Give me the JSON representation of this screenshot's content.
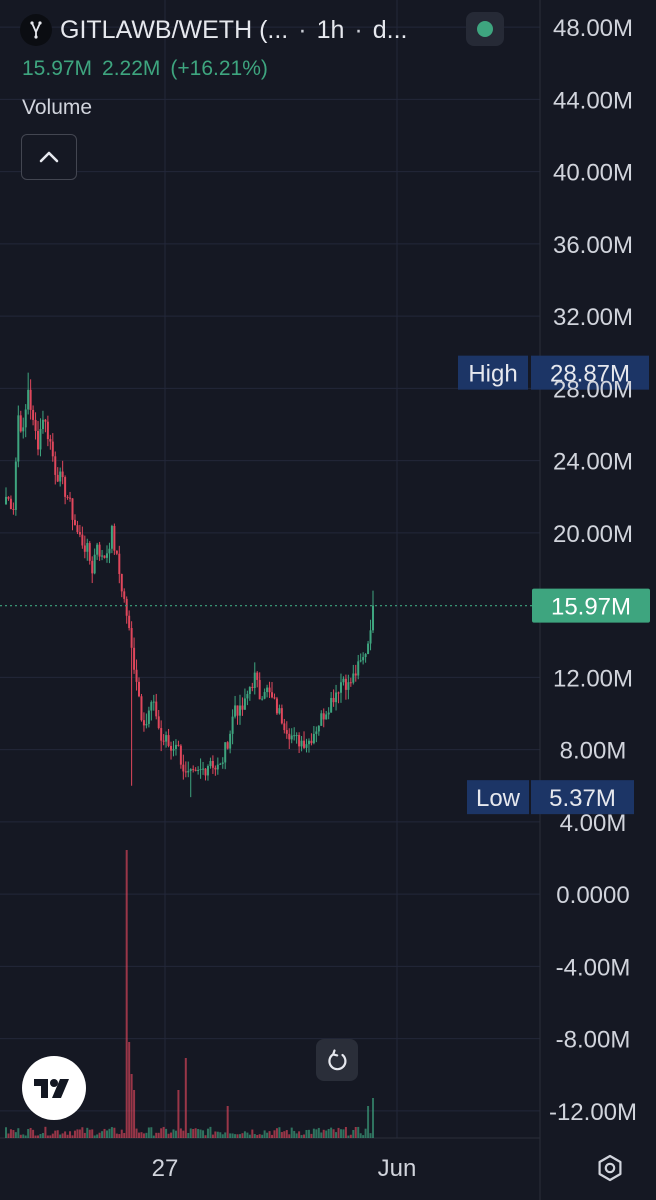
{
  "header": {
    "pair": "GITLAWB/WETH (...",
    "separator": "·",
    "interval": "1h",
    "trailing": "d..."
  },
  "values_line": {
    "close": "15.97M",
    "change": "2.22M",
    "change_pct": "(+16.21%)"
  },
  "indicator": {
    "label": "Volume"
  },
  "colors": {
    "background": "#151823",
    "up": "#3ea57f",
    "down": "#e0475c",
    "grid": "#23273a",
    "text": "#d1d4dc",
    "badge": "#1c3566",
    "price_tag": "#3ea57f"
  },
  "icons": {
    "logo": "gitlawb-logo-icon",
    "status": "status-dot-icon",
    "collapse": "chevron-up-icon",
    "reset": "reset-icon",
    "brand": "tradingview-logo-icon",
    "settings": "gear-icon"
  },
  "chart_data": {
    "type": "candlestick",
    "y_ticks": [
      "48.00M",
      "44.00M",
      "40.00M",
      "36.00M",
      "32.00M",
      "28.00M",
      "24.00M",
      "20.00M",
      "12.00M",
      "8.00M",
      "4.00M",
      "0.0000",
      "-4.00M",
      "-8.00M",
      "-12.00M"
    ],
    "y_tick_values": [
      48,
      44,
      40,
      36,
      32,
      28,
      24,
      20,
      12,
      8,
      4,
      0,
      -4,
      -8,
      -12
    ],
    "ylim": [
      -13.5,
      49.5
    ],
    "x_ticks": [
      "27",
      "Jun"
    ],
    "high": {
      "label": "High",
      "value": "28.87M",
      "y": 28.87
    },
    "low": {
      "label": "Low",
      "value": "5.37M",
      "y": 5.37
    },
    "last_price": {
      "value": "15.97M",
      "y": 15.97
    },
    "close_anchors": [
      [
        0,
        22.0
      ],
      [
        3,
        21.5
      ],
      [
        5,
        26.5
      ],
      [
        7,
        25.5
      ],
      [
        9,
        28.0
      ],
      [
        11,
        26.0
      ],
      [
        13,
        25.0
      ],
      [
        15,
        26.5
      ],
      [
        18,
        25.0
      ],
      [
        20,
        23.5
      ],
      [
        22,
        23.0
      ],
      [
        25,
        22.0
      ],
      [
        27,
        21.0
      ],
      [
        29,
        20.0
      ],
      [
        31,
        19.5
      ],
      [
        33,
        19.0
      ],
      [
        35,
        18.0
      ],
      [
        37,
        19.5
      ],
      [
        39,
        18.5
      ],
      [
        41,
        19.0
      ],
      [
        43,
        20.0
      ],
      [
        45,
        18.5
      ],
      [
        47,
        17.0
      ],
      [
        49,
        15.5
      ],
      [
        51,
        13.5
      ],
      [
        53,
        12.0
      ],
      [
        55,
        10.0
      ],
      [
        57,
        9.5
      ],
      [
        59,
        10.5
      ],
      [
        61,
        10.0
      ],
      [
        63,
        8.5
      ],
      [
        65,
        8.5
      ],
      [
        67,
        8.0
      ],
      [
        69,
        8.5
      ],
      [
        71,
        7.5
      ],
      [
        73,
        6.5
      ],
      [
        75,
        6.5
      ],
      [
        77,
        6.5
      ],
      [
        79,
        6.8
      ],
      [
        81,
        7.0
      ],
      [
        83,
        7.5
      ],
      [
        85,
        7.0
      ],
      [
        87,
        7.0
      ],
      [
        89,
        8.0
      ],
      [
        91,
        9.0
      ],
      [
        93,
        10.5
      ],
      [
        95,
        10.0
      ],
      [
        97,
        10.5
      ],
      [
        99,
        11.5
      ],
      [
        101,
        12.0
      ],
      [
        103,
        11.0
      ],
      [
        105,
        11.5
      ],
      [
        107,
        11.0
      ],
      [
        109,
        10.5
      ],
      [
        111,
        10.0
      ],
      [
        113,
        9.5
      ],
      [
        115,
        9.0
      ],
      [
        117,
        8.5
      ],
      [
        119,
        8.5
      ],
      [
        121,
        8.5
      ],
      [
        123,
        8.5
      ],
      [
        125,
        9.0
      ],
      [
        127,
        9.5
      ],
      [
        129,
        10.0
      ],
      [
        131,
        10.5
      ],
      [
        133,
        11.0
      ],
      [
        135,
        11.5
      ],
      [
        137,
        12.0
      ],
      [
        139,
        11.5
      ],
      [
        141,
        12.0
      ],
      [
        143,
        12.5
      ],
      [
        145,
        13.0
      ],
      [
        147,
        14.0
      ],
      [
        149,
        15.97
      ]
    ],
    "volume_spikes": [
      [
        49,
        18
      ],
      [
        50,
        6
      ],
      [
        51,
        4
      ],
      [
        52,
        3
      ],
      [
        70,
        3
      ],
      [
        73,
        5
      ],
      [
        90,
        2
      ],
      [
        147,
        2
      ],
      [
        149,
        2.5
      ]
    ]
  }
}
